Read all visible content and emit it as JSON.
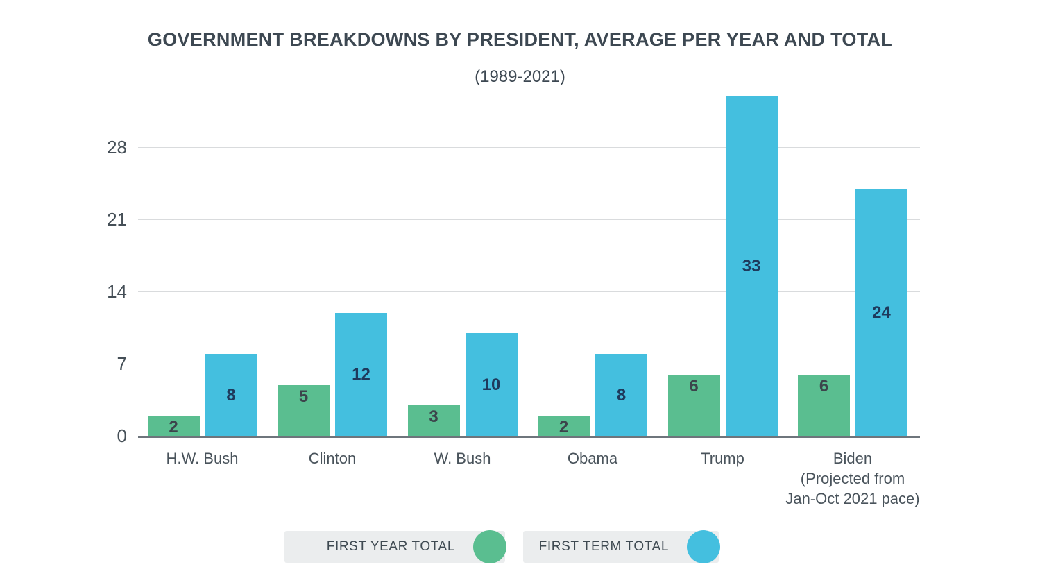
{
  "header": {
    "title": "GOVERNMENT BREAKDOWNS BY PRESIDENT, AVERAGE PER YEAR AND TOTAL",
    "subtitle": "(1989-2021)"
  },
  "chart_data": {
    "type": "bar",
    "title": "GOVERNMENT BREAKDOWNS BY PRESIDENT, AVERAGE PER YEAR AND TOTAL",
    "subtitle": "(1989-2021)",
    "categories": [
      "H.W. Bush",
      "Clinton",
      "W. Bush",
      "Obama",
      "Trump",
      "Biden\n(Projected from\nJan-Oct 2021 pace)"
    ],
    "series": [
      {
        "name": "FIRST YEAR TOTAL",
        "color": "#5abe90",
        "label_color": "#3c444b",
        "values": [
          2,
          5,
          3,
          2,
          6,
          6
        ]
      },
      {
        "name": "FIRST TERM TOTAL",
        "color": "#44bfdf",
        "label_color": "#1e3a5c",
        "values": [
          8,
          12,
          10,
          8,
          33,
          24
        ]
      }
    ],
    "yticks": [
      0,
      7,
      14,
      21,
      28
    ],
    "ylim": [
      0,
      34
    ],
    "xlabel": "",
    "ylabel": "",
    "grid": "horizontal",
    "legend_position": "bottom",
    "bar_value_labels": "inside"
  },
  "legend": {
    "items": [
      {
        "label": "FIRST YEAR TOTAL",
        "color": "#5abe90"
      },
      {
        "label": "FIRST TERM TOTAL",
        "color": "#44bfdf"
      }
    ]
  },
  "colors": {
    "title_text": "#3d4852",
    "axis_text": "#49535b",
    "gridline": "#d9dbdd",
    "axis_line": "#6e757c",
    "green": "#5abe90",
    "blue": "#44bfdf",
    "legend_pill_bg": "#ebedee"
  }
}
